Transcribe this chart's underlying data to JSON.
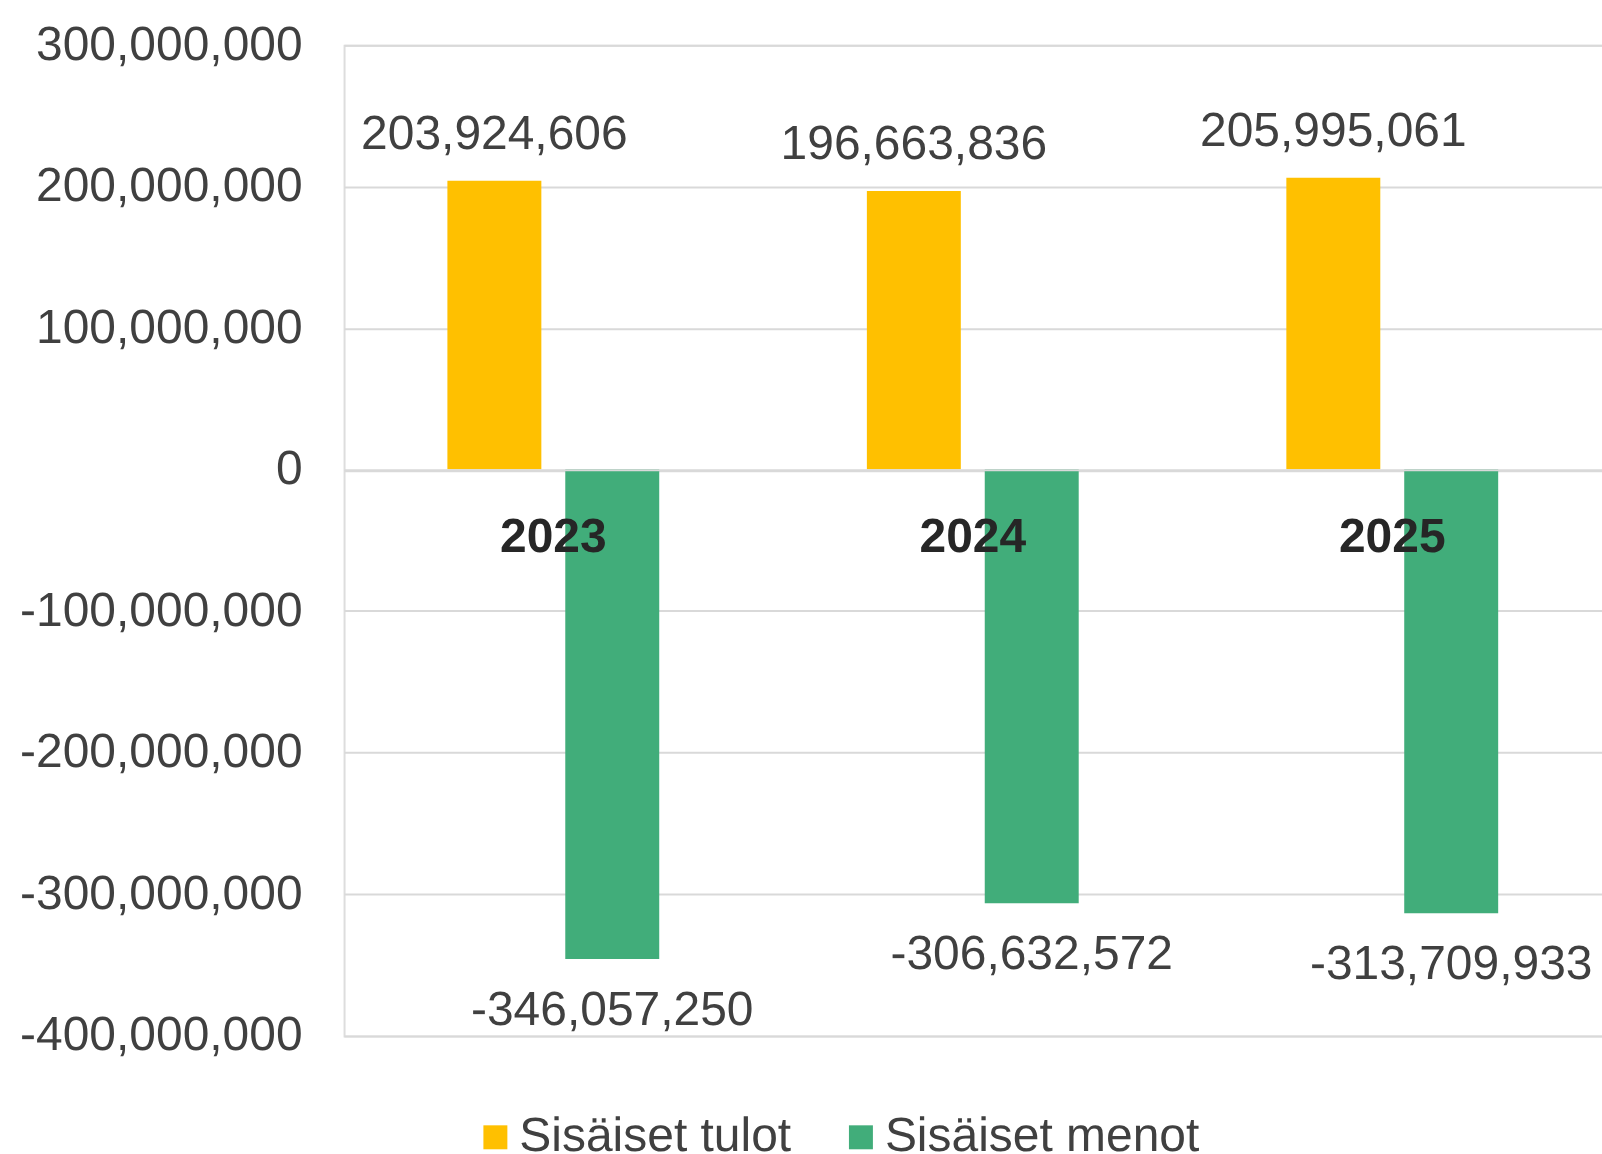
{
  "chart_data": {
    "type": "bar",
    "categories": [
      "2023",
      "2024",
      "2025"
    ],
    "series": [
      {
        "name": "Sisäiset tulot",
        "color": "#ffc000",
        "values": [
          203924606,
          196663836,
          205995061
        ],
        "value_labels": [
          "203,924,606",
          "196,663,836",
          "205,995,061"
        ]
      },
      {
        "name": "Sisäiset menot",
        "color": "#41ad7a",
        "values": [
          -346057250,
          -306632572,
          -313709933
        ],
        "value_labels": [
          "-346,057,250",
          "-306,632,572",
          "-313,709,933"
        ]
      }
    ],
    "ylim": [
      -400000000,
      300000000
    ],
    "yticks": [
      {
        "value": -400000000,
        "label": "-400,000,000"
      },
      {
        "value": -300000000,
        "label": "-300,000,000"
      },
      {
        "value": -200000000,
        "label": "-200,000,000"
      },
      {
        "value": -100000000,
        "label": "-100,000,000"
      },
      0,
      {
        "value": 100000000,
        "label": "100,000,000"
      },
      {
        "value": 200000000,
        "label": "200,000,000"
      },
      {
        "value": 300000000,
        "label": "300,000,000"
      }
    ],
    "grid": "y",
    "legend": "bottom"
  }
}
